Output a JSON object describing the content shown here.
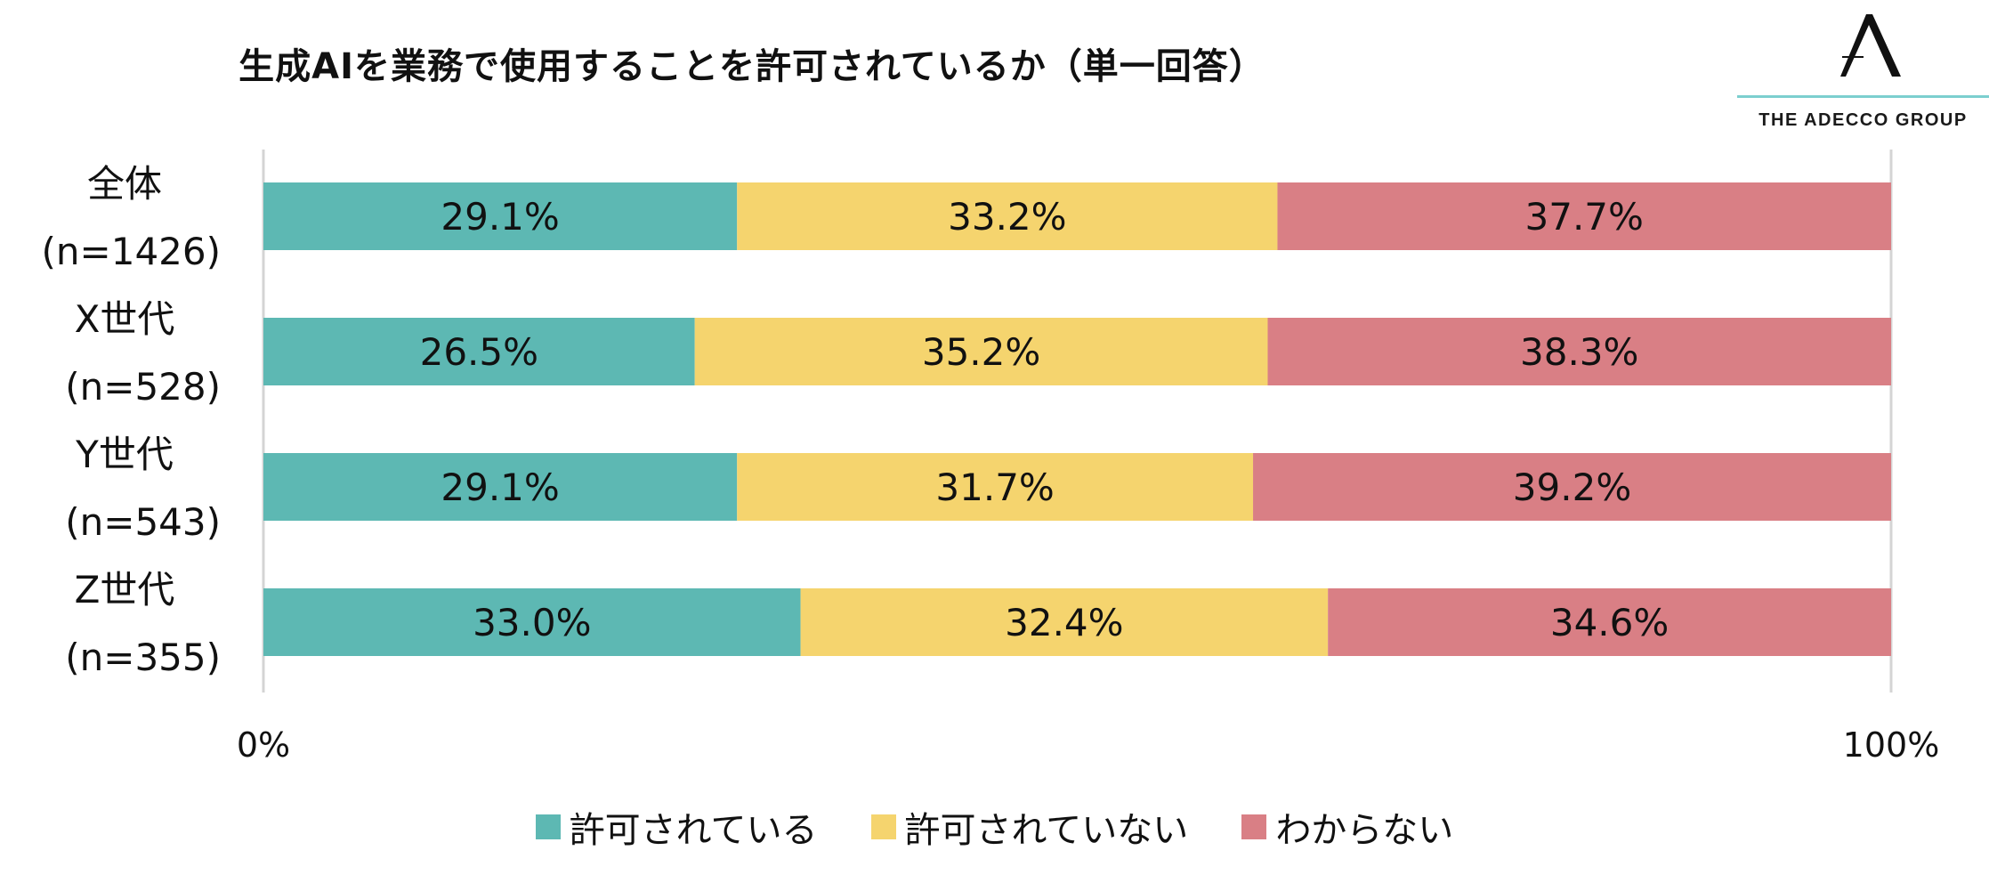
{
  "colors": {
    "permitted": "#5db8b3",
    "not_permitted": "#f5d46e",
    "unknown": "#d97f85",
    "axis": "#d4d4d4",
    "logo_rule": "#7ccfcf"
  },
  "logo": {
    "text": "THE ADECCO GROUP",
    "icon": "adecco-a-logo-icon"
  },
  "chart_data": {
    "type": "bar",
    "orientation": "horizontal",
    "stacked": true,
    "title": "生成AIを業務で使用することを許可されているか（単一回答）",
    "categories": [
      [
        "全体",
        "(n=1426)"
      ],
      [
        "X世代",
        "(n=528)"
      ],
      [
        "Y世代",
        "(n=543)"
      ],
      [
        "Z世代",
        "(n=355)"
      ]
    ],
    "series": [
      {
        "name": "許可されている",
        "values": [
          29.1,
          26.5,
          29.1,
          33.0
        ],
        "labels": [
          "29.1%",
          "26.5%",
          "29.1%",
          "33.0%"
        ]
      },
      {
        "name": "許可されていない",
        "values": [
          33.2,
          35.2,
          31.7,
          32.4
        ],
        "labels": [
          "33.2%",
          "35.2%",
          "31.7%",
          "32.4%"
        ]
      },
      {
        "name": "わからない",
        "values": [
          37.7,
          38.3,
          39.2,
          34.6
        ],
        "labels": [
          "37.7%",
          "38.3%",
          "39.2%",
          "34.6%"
        ]
      }
    ],
    "xlim": [
      0,
      100
    ],
    "x_ticks": [
      "0%",
      "100%"
    ],
    "grid": false,
    "legend_position": "bottom"
  }
}
